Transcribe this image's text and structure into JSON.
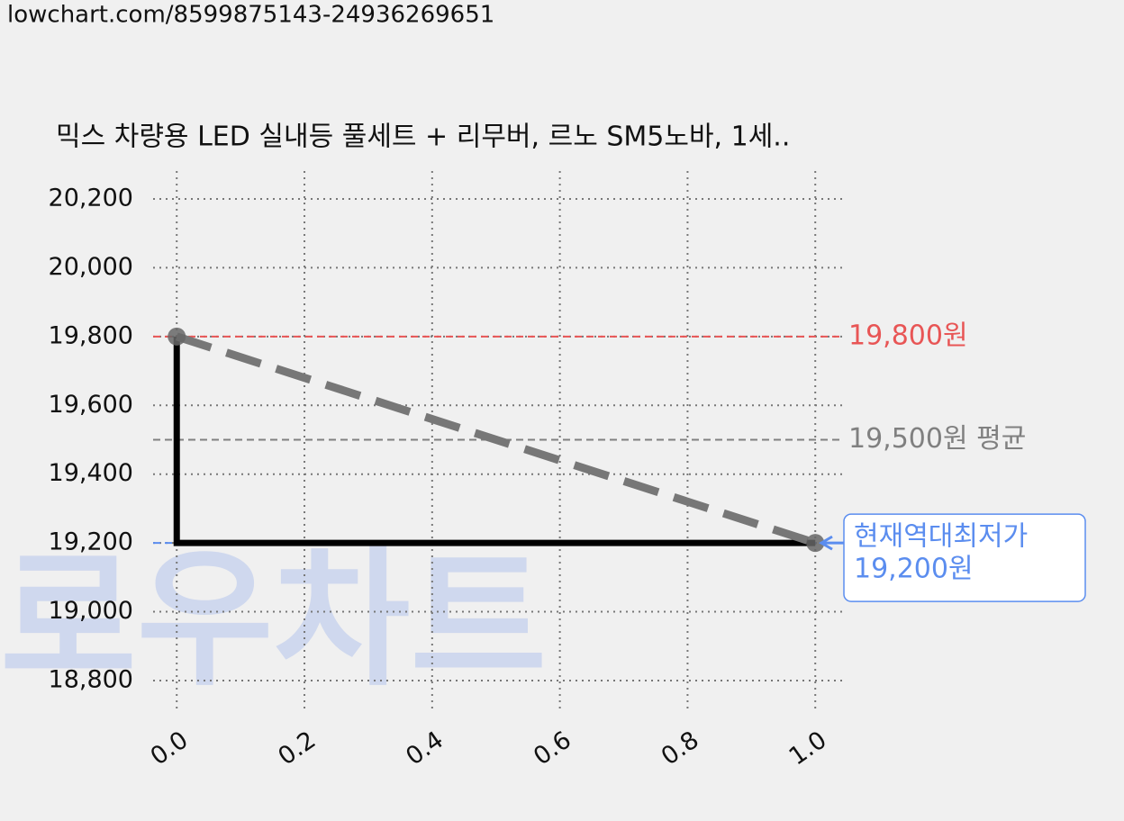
{
  "url": "lowchart.com/8599875143-24936269651",
  "chart_data": {
    "type": "line",
    "title": "믹스 차량용 LED 실내등 풀세트 + 리무버, 르노 SM5노바, 1세..",
    "watermark": "로우차트",
    "x": [
      0,
      1
    ],
    "series": [
      {
        "values": [
          19800,
          19200
        ],
        "color": "#000000",
        "style": "step"
      },
      {
        "values": [
          19800,
          19200
        ],
        "color": "#777777",
        "style": "dashed"
      }
    ],
    "hlines": [
      {
        "value": 19800,
        "label": "19,800원",
        "color": "#e85555"
      },
      {
        "value": 19500,
        "label": "19,500원 평균",
        "color": "#808080"
      },
      {
        "value": 19200,
        "label_lines": [
          "현재역대최저가",
          "19,200원"
        ],
        "color": "#5b8def"
      }
    ],
    "xlim": [
      -0.037,
      1.042
    ],
    "ylim": [
      18711,
      20281
    ],
    "xticks": [
      {
        "value": 0,
        "label": "0.0"
      },
      0.2,
      0.4,
      0.6,
      0.8,
      {
        "value": 1,
        "label": "1.0"
      }
    ],
    "yticks": [
      {
        "value": 18800,
        "label": "18,800"
      },
      {
        "value": 19000,
        "label": "19,000"
      },
      {
        "value": 19200,
        "label": "19,200"
      },
      {
        "value": 19400,
        "label": "19,400"
      },
      {
        "value": 19600,
        "label": "19,600"
      },
      {
        "value": 19800,
        "label": "19,800"
      },
      {
        "value": 20000,
        "label": "20,000"
      },
      {
        "value": 20200,
        "label": "20,200"
      }
    ],
    "grid": true
  }
}
